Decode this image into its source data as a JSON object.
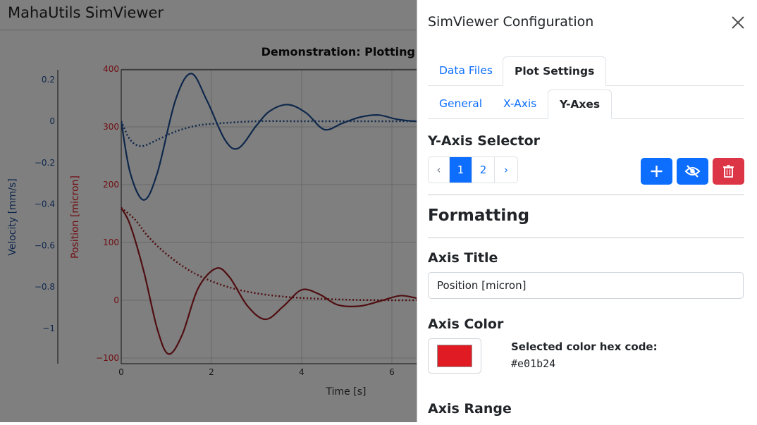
{
  "app": {
    "title": "MahaUtils SimViewer"
  },
  "chart_data": {
    "type": "line",
    "title": "Demonstration: Plotting w",
    "xlabel": "Time [s]",
    "xlim": [
      0,
      7
    ],
    "x_ticks": [
      "0",
      "2",
      "4",
      "6"
    ],
    "y_axes": [
      {
        "label": "Position [micron]",
        "color": "#e01b24",
        "ylim": [
          -100,
          400
        ],
        "ticks": [
          "400",
          "300",
          "200",
          "100",
          "0",
          "−100"
        ]
      },
      {
        "label": "Velocity [mm/s]",
        "color": "#1f4e9a",
        "ylim": [
          -1.2,
          0.25
        ],
        "ticks": [
          "0.2",
          "0",
          "−0.2",
          "−0.4",
          "−0.6",
          "−0.8",
          "−1"
        ]
      }
    ],
    "series": [
      {
        "axis": "velocity",
        "style": "solid",
        "color": "#1c4e96",
        "x": [
          0,
          0.2,
          0.5,
          0.8,
          1.2,
          1.55,
          1.9,
          2.3,
          2.6,
          3.0,
          3.3,
          3.7,
          4.1,
          4.5,
          4.9,
          5.3,
          5.7,
          6.1,
          6.5,
          7.0
        ],
        "y": [
          0.0,
          -0.25,
          -0.38,
          -0.25,
          0.1,
          0.23,
          0.1,
          -0.09,
          -0.13,
          -0.02,
          0.05,
          0.08,
          0.04,
          -0.04,
          -0.01,
          0.02,
          0.03,
          0.01,
          0.0,
          0.0
        ]
      },
      {
        "axis": "velocity",
        "style": "dotted",
        "color": "#1c4e96",
        "x": [
          0,
          0.2,
          0.45,
          0.8,
          1.2,
          1.7,
          2.2,
          3.0,
          4.0,
          5.0,
          6.0,
          7.0
        ],
        "y": [
          0.0,
          -0.09,
          -0.12,
          -0.09,
          -0.05,
          -0.02,
          -0.01,
          0.0,
          0.0,
          0.0,
          0.0,
          0.0
        ]
      },
      {
        "axis": "position",
        "style": "solid",
        "color": "#a01c22",
        "x": [
          0,
          0.2,
          0.5,
          0.8,
          1.05,
          1.35,
          1.7,
          2.1,
          2.4,
          2.8,
          3.2,
          3.6,
          4.0,
          4.4,
          4.8,
          5.3,
          5.8,
          6.2,
          6.6,
          7.0
        ],
        "y": [
          160,
          130,
          50,
          -50,
          -93,
          -60,
          20,
          55,
          40,
          -10,
          -33,
          -10,
          18,
          10,
          -8,
          -10,
          0,
          8,
          3,
          0
        ]
      },
      {
        "axis": "position",
        "style": "dotted",
        "color": "#a01c22",
        "x": [
          0,
          0.3,
          0.6,
          1.0,
          1.5,
          2.0,
          2.5,
          3.0,
          3.5,
          4.0,
          5.0,
          6.0,
          7.0
        ],
        "y": [
          160,
          140,
          110,
          80,
          52,
          33,
          20,
          12,
          7,
          4,
          1,
          0,
          0
        ]
      }
    ]
  },
  "panel": {
    "title": "SimViewer Configuration",
    "close_icon": "close-icon",
    "tabs": [
      {
        "label": "Data Files",
        "active": false
      },
      {
        "label": "Plot Settings",
        "active": true
      }
    ],
    "subtabs": [
      {
        "label": "General",
        "active": false
      },
      {
        "label": "X-Axis",
        "active": false
      },
      {
        "label": "Y-Axes",
        "active": true
      }
    ],
    "y_axis_selector": {
      "heading": "Y-Axis Selector",
      "prev_label": "‹",
      "next_label": "›",
      "pages": [
        "1",
        "2"
      ],
      "active_page": "1",
      "buttons": [
        {
          "name": "add-axis-button",
          "icon": "plus-icon",
          "variant": "primary"
        },
        {
          "name": "hide-axis-button",
          "icon": "eye-slash-icon",
          "variant": "primary"
        },
        {
          "name": "delete-axis-button",
          "icon": "trash-icon",
          "variant": "danger"
        }
      ]
    },
    "formatting": {
      "heading": "Formatting",
      "axis_title_label": "Axis Title",
      "axis_title_value": "Position [micron]",
      "axis_color_label": "Axis Color",
      "axis_color_value": "#e01b24",
      "selected_color_label": "Selected color hex code:",
      "selected_color_hex": "#e01b24",
      "axis_range_label": "Axis Range"
    }
  }
}
